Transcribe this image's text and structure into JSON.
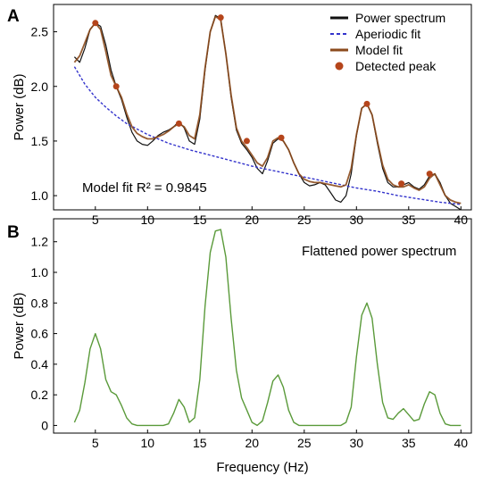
{
  "colors": {
    "power_spectrum": "#111111",
    "aperiodic_fit": "#3333cc",
    "model_fit": "#8b4a1c",
    "detected_peak": "#b5451b",
    "flattened": "#5a9a3a"
  },
  "chart_data": [
    {
      "type": "line",
      "panel_label": "A",
      "ylabel": "Power (dB)",
      "xlim": [
        1,
        41
      ],
      "ylim": [
        0.87,
        2.75
      ],
      "xticks": [
        5,
        10,
        15,
        20,
        25,
        30,
        35,
        40
      ],
      "yticks": [
        1.0,
        1.5,
        2.0,
        2.5
      ],
      "ytick_labels": [
        "1.0",
        "1.5",
        "2.0",
        "2.5"
      ],
      "legend_position": "top-right",
      "annotation": "Model fit R² = 0.9845",
      "series": [
        {
          "name": "Power spectrum",
          "style": "solid",
          "x": [
            3,
            3.5,
            4,
            4.5,
            5,
            5.5,
            6,
            6.5,
            7,
            7.5,
            8,
            8.5,
            9,
            9.5,
            10,
            10.5,
            11,
            11.5,
            12,
            12.5,
            13,
            13.5,
            14,
            14.5,
            15,
            15.5,
            16,
            16.5,
            17,
            17.5,
            18,
            18.5,
            19,
            19.5,
            20,
            20.5,
            21,
            21.5,
            22,
            22.5,
            23,
            23.5,
            24,
            24.5,
            25,
            25.5,
            26,
            26.5,
            27,
            27.5,
            28,
            28.5,
            29,
            29.5,
            30,
            30.5,
            31,
            31.5,
            32,
            32.5,
            33,
            33.5,
            34,
            34.5,
            35,
            35.5,
            36,
            36.5,
            37,
            37.5,
            38,
            38.5,
            39,
            39.5,
            40
          ],
          "y": [
            2.27,
            2.22,
            2.35,
            2.52,
            2.58,
            2.55,
            2.38,
            2.15,
            2.0,
            1.88,
            1.72,
            1.58,
            1.5,
            1.47,
            1.46,
            1.5,
            1.55,
            1.58,
            1.6,
            1.63,
            1.68,
            1.62,
            1.5,
            1.47,
            1.7,
            2.15,
            2.5,
            2.65,
            2.62,
            2.3,
            1.9,
            1.6,
            1.48,
            1.42,
            1.35,
            1.25,
            1.2,
            1.32,
            1.48,
            1.52,
            1.5,
            1.42,
            1.3,
            1.2,
            1.12,
            1.09,
            1.1,
            1.12,
            1.1,
            1.03,
            0.96,
            0.94,
            1.0,
            1.2,
            1.55,
            1.8,
            1.84,
            1.74,
            1.48,
            1.25,
            1.12,
            1.08,
            1.08,
            1.1,
            1.12,
            1.08,
            1.06,
            1.1,
            1.18,
            1.2,
            1.12,
            1.0,
            0.93,
            0.9,
            0.87
          ]
        },
        {
          "name": "Aperiodic fit",
          "style": "dashed",
          "x": [
            3,
            4,
            5,
            6,
            7,
            8,
            10,
            12,
            14,
            16,
            18,
            20,
            22,
            24,
            26,
            28,
            30,
            32,
            34,
            36,
            38,
            40
          ],
          "y": [
            2.18,
            2.02,
            1.9,
            1.81,
            1.73,
            1.66,
            1.56,
            1.48,
            1.42,
            1.37,
            1.32,
            1.27,
            1.23,
            1.19,
            1.15,
            1.11,
            1.07,
            1.04,
            1.0,
            0.97,
            0.94,
            0.92
          ]
        },
        {
          "name": "Model fit",
          "style": "solid",
          "x": [
            3,
            3.5,
            4,
            4.5,
            5,
            5.5,
            6,
            6.5,
            7,
            7.5,
            8,
            8.5,
            9,
            9.5,
            10,
            10.5,
            11,
            11.5,
            12,
            12.5,
            13,
            13.5,
            14,
            14.5,
            15,
            15.5,
            16,
            16.5,
            17,
            17.5,
            18,
            18.5,
            19,
            19.5,
            20,
            20.5,
            21,
            21.5,
            22,
            22.5,
            23,
            23.5,
            24,
            24.5,
            25,
            25.5,
            26,
            26.5,
            27,
            27.5,
            28,
            28.5,
            29,
            29.5,
            30,
            30.5,
            31,
            31.5,
            32,
            32.5,
            33,
            33.5,
            34,
            34.5,
            35,
            35.5,
            36,
            36.5,
            37,
            37.5,
            38,
            38.5,
            39,
            39.5,
            40
          ],
          "y": [
            2.22,
            2.28,
            2.4,
            2.52,
            2.58,
            2.52,
            2.32,
            2.1,
            2.0,
            1.9,
            1.75,
            1.63,
            1.57,
            1.54,
            1.52,
            1.52,
            1.54,
            1.56,
            1.59,
            1.63,
            1.66,
            1.63,
            1.55,
            1.52,
            1.74,
            2.17,
            2.5,
            2.64,
            2.61,
            2.3,
            1.92,
            1.62,
            1.5,
            1.44,
            1.37,
            1.3,
            1.27,
            1.35,
            1.5,
            1.53,
            1.5,
            1.42,
            1.3,
            1.2,
            1.15,
            1.13,
            1.12,
            1.12,
            1.11,
            1.1,
            1.09,
            1.08,
            1.1,
            1.25,
            1.56,
            1.8,
            1.84,
            1.74,
            1.5,
            1.28,
            1.15,
            1.1,
            1.08,
            1.08,
            1.1,
            1.07,
            1.05,
            1.08,
            1.16,
            1.2,
            1.1,
            1.0,
            0.96,
            0.94,
            0.93
          ]
        },
        {
          "name": "Detected peak",
          "style": "markers",
          "x": [
            5,
            7,
            13,
            17,
            19.5,
            22.8,
            31,
            34.3,
            37
          ],
          "y": [
            2.58,
            2.0,
            1.66,
            2.63,
            1.5,
            1.53,
            1.84,
            1.11,
            1.2
          ]
        }
      ]
    },
    {
      "type": "line",
      "panel_label": "B",
      "ylabel": "Power (dB)",
      "xlabel": "Frequency (Hz)",
      "xlim": [
        1,
        41
      ],
      "ylim": [
        -0.05,
        1.35
      ],
      "xticks": [
        5,
        10,
        15,
        20,
        25,
        30,
        35,
        40
      ],
      "yticks": [
        0,
        0.2,
        0.4,
        0.6,
        0.8,
        1.0,
        1.2
      ],
      "ytick_labels": [
        "0",
        "0.2",
        "0.4",
        "0.6",
        "0.8",
        "1.0",
        "1.2"
      ],
      "annotation": "Flattened power spectrum",
      "series": [
        {
          "style": "solid",
          "x": [
            3,
            3.5,
            4,
            4.5,
            5,
            5.5,
            6,
            6.5,
            7,
            7.5,
            8,
            8.5,
            9,
            9.5,
            10,
            10.5,
            11,
            11.5,
            12,
            12.5,
            13,
            13.5,
            14,
            14.5,
            15,
            15.5,
            16,
            16.5,
            17,
            17.5,
            18,
            18.5,
            19,
            19.5,
            20,
            20.5,
            21,
            21.5,
            22,
            22.5,
            23,
            23.5,
            24,
            24.5,
            25,
            25.5,
            26,
            26.5,
            27,
            27.5,
            28,
            28.5,
            29,
            29.5,
            30,
            30.5,
            31,
            31.5,
            32,
            32.5,
            33,
            33.5,
            34,
            34.5,
            35,
            35.5,
            36,
            36.5,
            37,
            37.5,
            38,
            38.5,
            39,
            39.5,
            40
          ],
          "y": [
            0.02,
            0.1,
            0.28,
            0.5,
            0.6,
            0.5,
            0.3,
            0.22,
            0.2,
            0.13,
            0.05,
            0.01,
            0.0,
            0.0,
            0.0,
            0.0,
            0.0,
            0.0,
            0.01,
            0.08,
            0.17,
            0.12,
            0.02,
            0.05,
            0.3,
            0.78,
            1.13,
            1.27,
            1.28,
            1.1,
            0.7,
            0.36,
            0.18,
            0.1,
            0.02,
            0.0,
            0.03,
            0.15,
            0.29,
            0.33,
            0.25,
            0.1,
            0.02,
            0.0,
            0.0,
            0.0,
            0.0,
            0.0,
            0.0,
            0.0,
            0.0,
            0.0,
            0.02,
            0.12,
            0.45,
            0.72,
            0.8,
            0.7,
            0.4,
            0.15,
            0.05,
            0.04,
            0.08,
            0.11,
            0.07,
            0.03,
            0.04,
            0.14,
            0.22,
            0.2,
            0.08,
            0.01,
            0.0,
            0.0,
            0.0
          ]
        }
      ]
    }
  ]
}
